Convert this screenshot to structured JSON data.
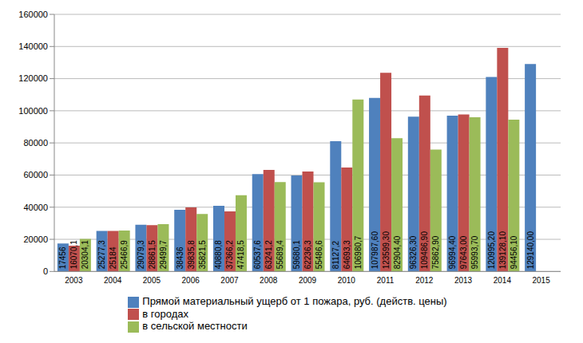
{
  "chart_data": {
    "type": "bar",
    "categories": [
      "2003",
      "2004",
      "2005",
      "2006",
      "2007",
      "2008",
      "2009",
      "2010",
      "2011",
      "2012",
      "2013",
      "2014",
      "2015"
    ],
    "series": [
      {
        "name": "Прямой материальный ущерб от 1 пожара, руб. (действ. цены)",
        "color": "#4f81bd",
        "values": [
          17456,
          25277.3,
          29079.3,
          38436,
          40880.8,
          60537.6,
          59680.1,
          81127.2,
          107987.6,
          96326.3,
          96994.4,
          120995.2,
          129140
        ],
        "value_labels": [
          "17456",
          "25277,3",
          "29079,3",
          "38436",
          "40880,8",
          "60537,6",
          "59680,1",
          "81127,2",
          "107987,60",
          "96326,30",
          "96994,40",
          "120995,20",
          "129140,00"
        ]
      },
      {
        "name": "в городах",
        "color": "#c0504d",
        "values": [
          16070.1,
          25184,
          28861.5,
          39835.8,
          37366.2,
          63241.2,
          62236.3,
          64693.3,
          123599.3,
          109486.9,
          97643,
          139128.1,
          null
        ],
        "value_labels": [
          "16070,1",
          "25184",
          "28861,5",
          "39835,8",
          "37366,2",
          "63241,2",
          "62236,3",
          "64693,3",
          "123599,30",
          "109486,90",
          "97643,00",
          "139128,10",
          null
        ]
      },
      {
        "name": "в сельской местности",
        "color": "#9bbb59",
        "values": [
          20304.1,
          25466.9,
          29499.7,
          35821.5,
          47418.5,
          55689.4,
          55486.6,
          106980.7,
          82904.4,
          75862.9,
          95993.7,
          94456.1,
          null
        ],
        "value_labels": [
          "20304,1",
          "25466,9",
          "29499,7",
          "35821,5",
          "47418,5",
          "55689,4",
          "55486,6",
          "106980,7",
          "82904,40",
          "75862,90",
          "95993,70",
          "94456,10",
          null
        ]
      }
    ],
    "ylim": [
      0,
      160000
    ],
    "yticks": [
      0,
      20000,
      40000,
      60000,
      80000,
      100000,
      120000,
      140000,
      160000
    ],
    "grid": true,
    "legend": "bottom",
    "data_labels": true
  }
}
